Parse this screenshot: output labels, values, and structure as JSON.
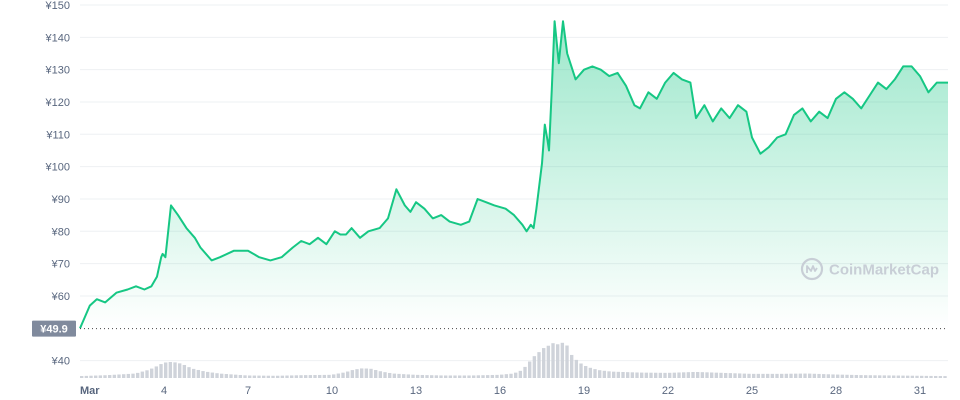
{
  "chart_data": {
    "type": "area",
    "currency_symbol": "¥",
    "y_ticks": [
      "¥150",
      "¥140",
      "¥130",
      "¥120",
      "¥110",
      "¥100",
      "¥90",
      "¥80",
      "¥70",
      "¥60",
      "¥40"
    ],
    "ylim": [
      34,
      150
    ],
    "x_ticks": [
      "Mar",
      "4",
      "7",
      "10",
      "13",
      "16",
      "19",
      "22",
      "25",
      "28",
      "31"
    ],
    "xlim": [
      1,
      32
    ],
    "open_label": "¥49.9",
    "open_value": 49.9,
    "watermark": "CoinMarketCap",
    "grid": true,
    "colors": {
      "line": "#16c784",
      "fill_top": "#16c784",
      "volume": "#cfd3da",
      "open_tag_bg": "#808a9d",
      "dotted": "#444444"
    },
    "price_series": {
      "x": [
        1.0,
        1.15,
        1.35,
        1.6,
        1.9,
        2.3,
        2.7,
        3.0,
        3.3,
        3.55,
        3.75,
        3.9,
        3.95,
        4.05,
        4.25,
        4.5,
        4.8,
        5.1,
        5.3,
        5.7,
        6.0,
        6.5,
        7.0,
        7.4,
        7.8,
        8.2,
        8.6,
        8.9,
        9.2,
        9.5,
        9.8,
        10.1,
        10.3,
        10.5,
        10.6,
        10.7,
        11.0,
        11.3,
        11.7,
        12.0,
        12.3,
        12.6,
        12.8,
        13.0,
        13.3,
        13.6,
        13.9,
        14.2,
        14.6,
        14.9,
        15.2,
        15.5,
        15.8,
        16.2,
        16.5,
        16.8,
        16.95,
        17.1,
        17.2,
        17.3,
        17.5,
        17.6,
        17.7,
        17.75,
        17.85,
        17.95,
        18.1,
        18.25,
        18.4,
        18.55,
        18.7,
        19.0,
        19.3,
        19.6,
        19.9,
        20.2,
        20.5,
        20.8,
        21.0,
        21.3,
        21.6,
        21.9,
        22.2,
        22.5,
        22.8,
        23.0,
        23.3,
        23.6,
        23.9,
        24.2,
        24.5,
        24.8,
        25.0,
        25.3,
        25.6,
        25.9,
        26.2,
        26.5,
        26.8,
        27.1,
        27.4,
        27.7,
        28.0,
        28.3,
        28.6,
        28.9,
        29.2,
        29.5,
        29.8,
        30.1,
        30.4,
        30.7,
        31.0,
        31.3,
        31.6,
        31.8,
        32.0
      ],
      "y": [
        50.0,
        53,
        57,
        59,
        58,
        61,
        62,
        63,
        62,
        63,
        66,
        72,
        73,
        72,
        88,
        85,
        81,
        78,
        75,
        71,
        72,
        74,
        74,
        72,
        71,
        72,
        75,
        77,
        76,
        78,
        76,
        80,
        79,
        79,
        80,
        81,
        78,
        80,
        81,
        84,
        93,
        88,
        86,
        89,
        87,
        84,
        85,
        83,
        82,
        83,
        90,
        89,
        88,
        87,
        85,
        82,
        80,
        82,
        81,
        87,
        101,
        113,
        108,
        105,
        124,
        145,
        132,
        145,
        135,
        131,
        127,
        130,
        131,
        130,
        128,
        129,
        125,
        119,
        118,
        123,
        121,
        126,
        129,
        127,
        126,
        115,
        119,
        114,
        118,
        115,
        119,
        117,
        109,
        104,
        106,
        109,
        110,
        116,
        118,
        114,
        117,
        115,
        121,
        123,
        121,
        118,
        122,
        126,
        124,
        127,
        131,
        131,
        128,
        123,
        126,
        126,
        126
      ]
    },
    "volume_series": {
      "x": [
        1,
        2,
        3,
        3.5,
        3.8,
        4,
        4.2,
        4.5,
        4.8,
        5,
        5.5,
        6,
        7,
        8,
        9,
        10,
        10.5,
        10.8,
        11.1,
        11.4,
        11.8,
        12.2,
        13,
        14,
        15,
        16,
        16.5,
        16.8,
        17.0,
        17.2,
        17.4,
        17.6,
        17.8,
        18.0,
        18.2,
        18.3,
        18.5,
        18.6,
        18.8,
        19.0,
        19.3,
        19.6,
        20,
        21,
        22,
        23,
        24,
        25,
        26,
        27,
        28,
        29,
        30,
        31,
        32
      ],
      "y": [
        35.2,
        35.5,
        36.0,
        37.2,
        38.4,
        39.3,
        39.6,
        39.4,
        38.5,
        37.6,
        36.6,
        36.0,
        35.4,
        35.3,
        35.5,
        35.6,
        36.4,
        37.2,
        37.6,
        37.5,
        36.6,
        36.0,
        35.6,
        35.4,
        35.4,
        35.6,
        36.0,
        37.0,
        38.8,
        41.0,
        42.5,
        44.0,
        44.8,
        45.8,
        44.0,
        47.0,
        43.0,
        41.5,
        39.8,
        38.6,
        37.6,
        37.0,
        36.6,
        36.3,
        36.2,
        36.5,
        36.2,
        35.9,
        35.9,
        36.0,
        35.7,
        35.5,
        35.4,
        35.3,
        35.2
      ]
    }
  }
}
